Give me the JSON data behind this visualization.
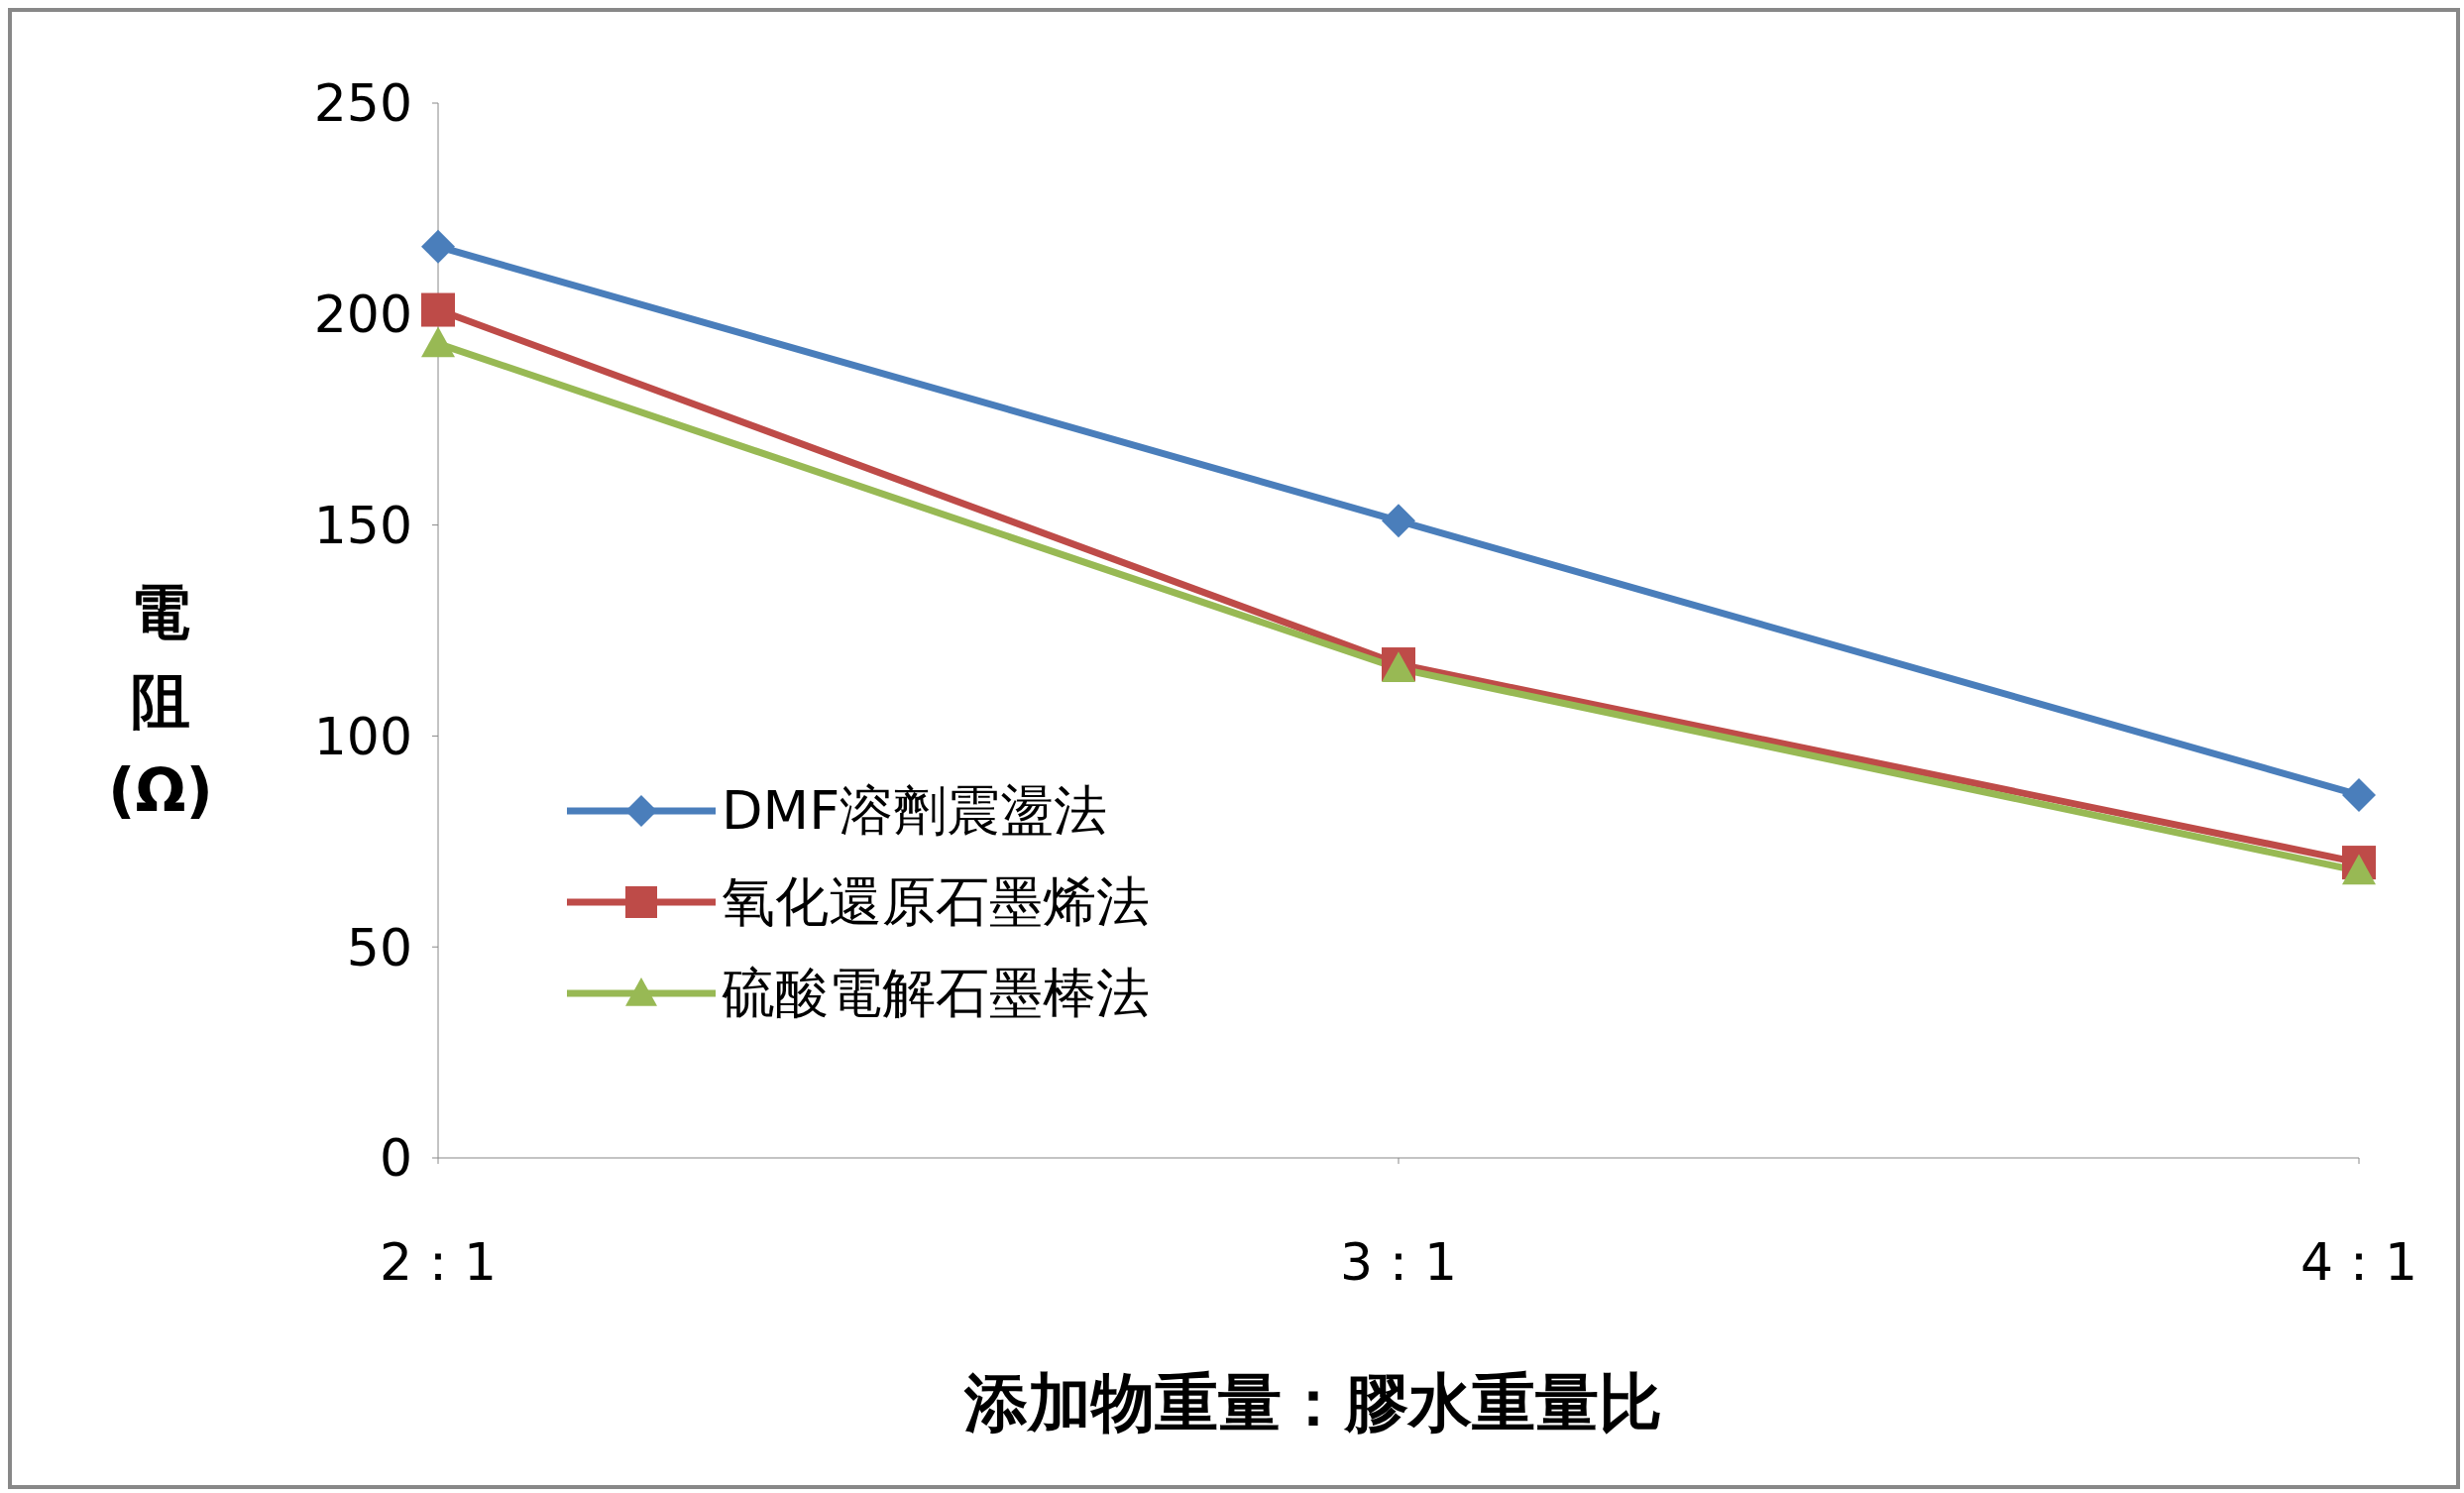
{
  "chart_data": {
    "type": "line",
    "xlabel": "添加物重量：膠水重量比",
    "ylabel": "電阻(Ω)",
    "categories": [
      "2：1",
      "3：1",
      "4：1"
    ],
    "series": [
      {
        "name": "DMF溶劑震盪法",
        "color": "#4a7ebb",
        "marker": "diamond",
        "values": [
          216,
          151,
          86
        ]
      },
      {
        "name": "氧化還原石墨烯法",
        "color": "#be4b48",
        "marker": "square",
        "values": [
          201,
          117,
          70
        ]
      },
      {
        "name": "硫酸電解石墨棒法",
        "color": "#98b954",
        "marker": "triangle",
        "values": [
          193,
          116,
          68
        ]
      }
    ],
    "ylim": [
      0,
      250
    ],
    "yticks": [
      0,
      50,
      100,
      150,
      200,
      250
    ],
    "legend": "left"
  }
}
